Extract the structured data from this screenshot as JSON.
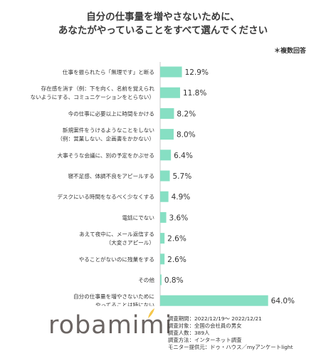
{
  "title_line1": "自分の仕事量を増やさないために、",
  "title_line2": "あなたがやっていることをすべて選んでください",
  "note": "＊複数回答",
  "chart_data": {
    "type": "bar",
    "orientation": "horizontal",
    "categories": [
      [
        "仕事を振られたら「無理です」と断る"
      ],
      [
        "存在感を消す（例：下を向く、名前を覚えられ",
        "ないようにする、コミュニケーションをとらない）"
      ],
      [
        "今の仕事に必要以上に時間をかける"
      ],
      [
        "新規案件をうけるようなことをしない",
        "（例：営業しない、企画書をかかない）"
      ],
      [
        "大事そうな会議に、別の予定をかぶせる"
      ],
      [
        "寝不足感、体調不良をアピールする"
      ],
      [
        "デスクにいる時間をなるべく少なくする"
      ],
      [
        "電話にでない"
      ],
      [
        "あえて夜中に、メール返信する",
        "（大変さアピール）"
      ],
      [
        "やることがないのに残業をする"
      ],
      [
        "その他"
      ],
      [
        "自分の仕事量を増やさないために",
        "やってることは特にない"
      ]
    ],
    "values": [
      12.9,
      11.8,
      8.2,
      8.0,
      6.4,
      5.7,
      4.9,
      3.6,
      2.6,
      2.6,
      0.8,
      64.0
    ],
    "value_labels": [
      "12.9%",
      "11.8%",
      "8.2%",
      "8.0%",
      "6.4%",
      "5.7%",
      "4.9%",
      "3.6%",
      "2.6%",
      "2.6%",
      "0.8%",
      "64.0%"
    ],
    "xlim": [
      0,
      70
    ],
    "bar_color": "#86dfc3",
    "grid": false
  },
  "logo": {
    "text": "robamimi",
    "leaf_color": "#f5c74a"
  },
  "survey_info": [
    "調査期間：2022/12/19～ 2022/12/21",
    "調査対象：全国の会社員の男女",
    "調査人数：389人",
    "調査方法：インターネット調査",
    "モニター提供元：ドゥ・ハウス／myアンケートlight"
  ]
}
